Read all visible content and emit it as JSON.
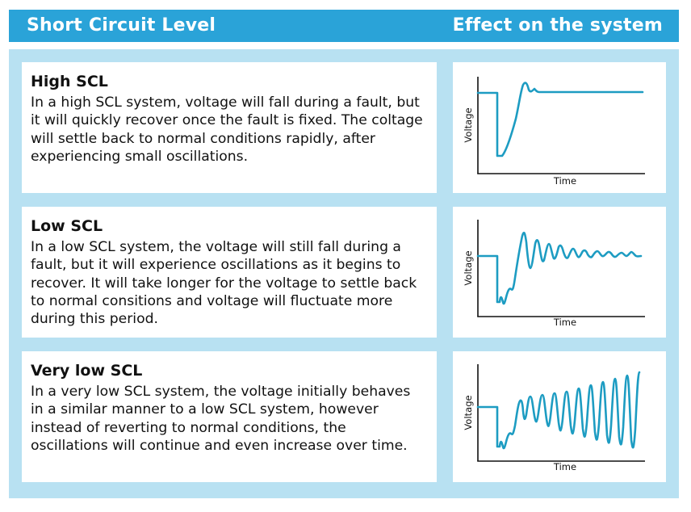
{
  "header": {
    "left_title": "Short Circuit Level",
    "right_title": "Effect on the system"
  },
  "rows": [
    {
      "title": "High SCL",
      "body": "In a high SCL system, voltage will fall during a fault, but it will quickly recover once the fault is fixed. The coltage will settle back to normal conditions rapidly, after experiencing small oscillations.",
      "graph": {
        "ylabel": "Voltage",
        "xlabel": "Time"
      }
    },
    {
      "title": "Low SCL",
      "body": "In a low SCL system, the voltage will still fall during a fault, but it will experience oscillations as it begins to recover. It will take longer for the voltage to settle back to normal consitions and voltage will fluctuate more during this period.",
      "graph": {
        "ylabel": "Voltage",
        "xlabel": "Time"
      }
    },
    {
      "title": "Very low SCL",
      "body": "In a very low SCL system, the voltage initially behaves in a similar manner to a low SCL system, however instead of reverting to normal conditions, the oscillations will continue and even increase over time.",
      "graph": {
        "ylabel": "Voltage",
        "xlabel": "Time"
      }
    }
  ],
  "colors": {
    "header": "#2aa3d8",
    "panel": "#b8e1f2",
    "waveform": "#1d9cc2",
    "axis": "#111111"
  }
}
